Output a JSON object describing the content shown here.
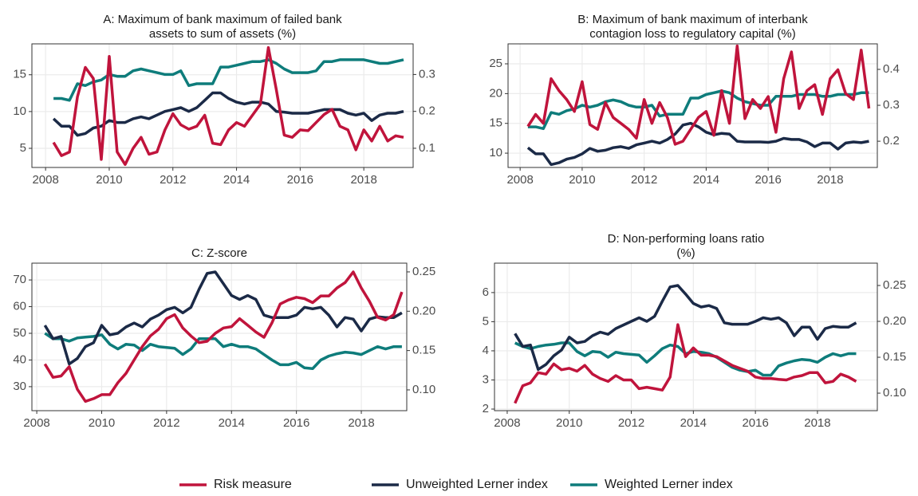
{
  "chart_data": [
    {
      "type": "line",
      "title": [
        "A: Maximum of bank maximum of failed bank",
        "assets to sum of assets (%)"
      ],
      "x": [
        2008.25,
        2008.5,
        2008.75,
        2009,
        2009.25,
        2009.5,
        2009.75,
        2010,
        2010.25,
        2010.5,
        2010.75,
        2011,
        2011.25,
        2011.5,
        2011.75,
        2012,
        2012.25,
        2012.5,
        2012.75,
        2013,
        2013.25,
        2013.5,
        2013.75,
        2014,
        2014.25,
        2014.5,
        2014.75,
        2015,
        2015.25,
        2015.5,
        2015.75,
        2016,
        2016.25,
        2016.5,
        2016.75,
        2017,
        2017.25,
        2017.5,
        2017.75,
        2018,
        2018.25,
        2018.5,
        2018.75,
        2019,
        2019.25
      ],
      "xlim": [
        2007.57,
        2019.55
      ],
      "xticks": [
        2008,
        2010,
        2012,
        2014,
        2016,
        2018
      ],
      "ylim": [
        2.4,
        19.2
      ],
      "yticks": [
        5,
        10,
        15
      ],
      "y2lim": [
        0.048,
        0.383
      ],
      "y2ticks": [
        0.1,
        0.2,
        0.3
      ],
      "grid": true,
      "series": [
        {
          "name": "Risk measure",
          "color": "#c0143c",
          "values": [
            5.8,
            4,
            4.5,
            12,
            16,
            14.5,
            3.5,
            17.5,
            4.5,
            2.8,
            5,
            6.5,
            4.2,
            4.5,
            7.5,
            9.7,
            8.2,
            7.6,
            8,
            9.5,
            5.7,
            5.5,
            7.5,
            8.5,
            8,
            9.5,
            11,
            18.7,
            13,
            6.8,
            6.5,
            7.5,
            7.4,
            8.5,
            9.6,
            10.3,
            8,
            7.5,
            4.8,
            7.5,
            6,
            8,
            6,
            6.7,
            6.5
          ]
        },
        {
          "name": "Unweighted Lerner index",
          "color": "#1b2a47",
          "axis": "y2",
          "values": [
            0.18,
            0.16,
            0.16,
            0.135,
            0.14,
            0.155,
            0.16,
            0.175,
            0.17,
            0.17,
            0.18,
            0.185,
            0.18,
            0.19,
            0.2,
            0.205,
            0.21,
            0.2,
            0.21,
            0.23,
            0.25,
            0.25,
            0.235,
            0.225,
            0.22,
            0.225,
            0.225,
            0.22,
            0.2,
            0.198,
            0.195,
            0.195,
            0.195,
            0.2,
            0.205,
            0.205,
            0.205,
            0.195,
            0.19,
            0.195,
            0.175,
            0.19,
            0.195,
            0.195,
            0.2
          ]
        },
        {
          "name": "Weighted Lerner index",
          "color": "#0e7c7b",
          "axis": "y2",
          "values": [
            0.235,
            0.235,
            0.23,
            0.275,
            0.27,
            0.28,
            0.285,
            0.3,
            0.295,
            0.295,
            0.31,
            0.315,
            0.31,
            0.305,
            0.3,
            0.3,
            0.31,
            0.27,
            0.275,
            0.275,
            0.275,
            0.32,
            0.32,
            0.325,
            0.33,
            0.335,
            0.335,
            0.34,
            0.33,
            0.315,
            0.305,
            0.305,
            0.305,
            0.31,
            0.335,
            0.335,
            0.34,
            0.34,
            0.34,
            0.34,
            0.335,
            0.33,
            0.33,
            0.335,
            0.34
          ]
        }
      ]
    },
    {
      "type": "line",
      "title": [
        "B: Maximum of bank maximum of interbank",
        "contagion loss to regulatory capital (%)"
      ],
      "x": [
        2008.25,
        2008.5,
        2008.75,
        2009,
        2009.25,
        2009.5,
        2009.75,
        2010,
        2010.25,
        2010.5,
        2010.75,
        2011,
        2011.25,
        2011.5,
        2011.75,
        2012,
        2012.25,
        2012.5,
        2012.75,
        2013,
        2013.25,
        2013.5,
        2013.75,
        2014,
        2014.25,
        2014.5,
        2014.75,
        2015,
        2015.25,
        2015.5,
        2015.75,
        2016,
        2016.25,
        2016.5,
        2016.75,
        2017,
        2017.25,
        2017.5,
        2017.75,
        2018,
        2018.25,
        2018.5,
        2018.75,
        2019,
        2019.25
      ],
      "xlim": [
        2007.61,
        2019.52
      ],
      "xticks": [
        2008,
        2010,
        2012,
        2014,
        2016,
        2018
      ],
      "ylim": [
        7.6,
        28.35
      ],
      "yticks": [
        10,
        15,
        20,
        25
      ],
      "y2lim": [
        0.127,
        0.471
      ],
      "y2ticks": [
        0.2,
        0.3,
        0.4
      ],
      "grid": true,
      "series": [
        {
          "name": "Risk measure",
          "color": "#c0143c",
          "values": [
            14.5,
            16.5,
            15,
            22.5,
            20.5,
            19,
            17,
            22,
            14.8,
            14,
            18.5,
            16,
            15,
            14,
            12.5,
            19,
            15,
            18.5,
            16,
            11.5,
            12,
            14,
            16,
            17,
            13,
            20.5,
            15,
            28,
            15.8,
            19,
            17.5,
            19.5,
            13.5,
            22.5,
            27,
            17.5,
            20.5,
            21.5,
            16.5,
            22.5,
            24,
            20,
            19,
            27.3,
            17.5
          ]
        },
        {
          "name": "Unweighted Lerner index",
          "color": "#1b2a47",
          "axis": "y2",
          "values": [
            0.182,
            0.165,
            0.165,
            0.135,
            0.14,
            0.15,
            0.155,
            0.165,
            0.18,
            0.172,
            0.175,
            0.182,
            0.185,
            0.18,
            0.19,
            0.195,
            0.2,
            0.195,
            0.205,
            0.22,
            0.245,
            0.25,
            0.24,
            0.225,
            0.218,
            0.222,
            0.22,
            0.2,
            0.198,
            0.198,
            0.198,
            0.197,
            0.2,
            0.208,
            0.205,
            0.205,
            0.198,
            0.185,
            0.195,
            0.195,
            0.178,
            0.195,
            0.198,
            0.196,
            0.2
          ]
        },
        {
          "name": "Weighted Lerner index",
          "color": "#0e7c7b",
          "axis": "y2",
          "values": [
            0.24,
            0.24,
            0.235,
            0.28,
            0.275,
            0.285,
            0.29,
            0.3,
            0.295,
            0.3,
            0.31,
            0.315,
            0.31,
            0.3,
            0.295,
            0.295,
            0.3,
            0.27,
            0.275,
            0.275,
            0.275,
            0.32,
            0.32,
            0.33,
            0.335,
            0.34,
            0.335,
            0.32,
            0.31,
            0.305,
            0.3,
            0.3,
            0.325,
            0.325,
            0.325,
            0.33,
            0.33,
            0.33,
            0.325,
            0.325,
            0.33,
            0.33,
            0.33,
            0.335,
            0.335
          ]
        }
      ]
    },
    {
      "type": "line",
      "title": [
        "C: Z-score"
      ],
      "x": [
        2008.25,
        2008.5,
        2008.75,
        2009,
        2009.25,
        2009.5,
        2009.75,
        2010,
        2010.25,
        2010.5,
        2010.75,
        2011,
        2011.25,
        2011.5,
        2011.75,
        2012,
        2012.25,
        2012.5,
        2012.75,
        2013,
        2013.25,
        2013.5,
        2013.75,
        2014,
        2014.25,
        2014.5,
        2014.75,
        2015,
        2015.25,
        2015.5,
        2015.75,
        2016,
        2016.25,
        2016.5,
        2016.75,
        2017,
        2017.25,
        2017.5,
        2017.75,
        2018,
        2018.25,
        2018.5,
        2018.75,
        2019,
        2019.25
      ],
      "xlim": [
        2007.85,
        2019.4
      ],
      "xticks": [
        2008,
        2010,
        2012,
        2014,
        2016,
        2018
      ],
      "ylim": [
        21,
        76.3
      ],
      "yticks": [
        30,
        40,
        50,
        60,
        70
      ],
      "y2lim": [
        0.0736,
        0.2611
      ],
      "y2ticks": [
        {
          "value": 0.1,
          "label": "0.10"
        },
        0.15,
        {
          "value": 0.2,
          "label": "0.20"
        },
        0.25
      ],
      "grid": true,
      "series": [
        {
          "name": "Risk measure",
          "color": "#c0143c",
          "values": [
            38.5,
            33.5,
            34,
            37.5,
            29,
            24.5,
            25.5,
            27,
            27,
            31.5,
            35,
            40,
            45,
            49,
            51.5,
            55.5,
            57,
            52,
            49,
            46.5,
            47,
            50,
            52,
            52.5,
            55.5,
            53,
            50.5,
            48.5,
            54,
            61,
            62.5,
            63.5,
            63,
            61.5,
            64,
            64,
            67,
            69,
            73,
            67,
            62,
            56,
            55,
            57,
            65.5
          ]
        },
        {
          "name": "Unweighted Lerner index",
          "color": "#1b2a47",
          "axis": "y2",
          "values": [
            0.182,
            0.165,
            0.168,
            0.133,
            0.14,
            0.155,
            0.16,
            0.182,
            0.17,
            0.172,
            0.18,
            0.185,
            0.18,
            0.19,
            0.195,
            0.202,
            0.205,
            0.198,
            0.205,
            0.228,
            0.248,
            0.25,
            0.235,
            0.22,
            0.215,
            0.22,
            0.215,
            0.195,
            0.192,
            0.192,
            0.192,
            0.195,
            0.205,
            0.203,
            0.205,
            0.195,
            0.18,
            0.192,
            0.19,
            0.175,
            0.19,
            0.193,
            0.192,
            0.192,
            0.198
          ]
        },
        {
          "name": "Weighted Lerner index",
          "color": "#0e7c7b",
          "axis": "y2",
          "values": [
            0.172,
            0.165,
            0.165,
            0.162,
            0.166,
            0.167,
            0.168,
            0.17,
            0.158,
            0.152,
            0.158,
            0.157,
            0.15,
            0.158,
            0.155,
            0.154,
            0.153,
            0.145,
            0.152,
            0.165,
            0.165,
            0.165,
            0.155,
            0.158,
            0.155,
            0.155,
            0.152,
            0.145,
            0.138,
            0.132,
            0.132,
            0.135,
            0.128,
            0.127,
            0.138,
            0.143,
            0.146,
            0.148,
            0.147,
            0.145,
            0.15,
            0.155,
            0.152,
            0.155,
            0.155
          ]
        }
      ]
    },
    {
      "type": "line",
      "title": [
        "D: Non-performing loans ratio",
        "(%)"
      ],
      "x": [
        2008.25,
        2008.5,
        2008.75,
        2009,
        2009.25,
        2009.5,
        2009.75,
        2010,
        2010.25,
        2010.5,
        2010.75,
        2011,
        2011.25,
        2011.5,
        2011.75,
        2012,
        2012.25,
        2012.5,
        2012.75,
        2013,
        2013.25,
        2013.5,
        2013.75,
        2014,
        2014.25,
        2014.5,
        2014.75,
        2015,
        2015.25,
        2015.5,
        2015.75,
        2016,
        2016.25,
        2016.5,
        2016.75,
        2017,
        2017.25,
        2017.5,
        2017.75,
        2018,
        2018.25,
        2018.5,
        2018.75,
        2019,
        2019.25
      ],
      "xlim": [
        2007.59,
        2019.93
      ],
      "xticks": [
        2008,
        2010,
        2012,
        2014,
        2016,
        2018
      ],
      "ylim": [
        1.945,
        7.01
      ],
      "yticks": [
        2,
        3,
        4,
        5,
        6
      ],
      "y2lim": [
        0.0756,
        0.2811
      ],
      "y2ticks": [
        {
          "value": 0.1,
          "label": "0.10"
        },
        0.15,
        {
          "value": 0.2,
          "label": "0.20"
        },
        0.25
      ],
      "grid": true,
      "series": [
        {
          "name": "Risk measure",
          "color": "#c0143c",
          "values": [
            2.2,
            2.8,
            2.9,
            3.25,
            3.2,
            3.55,
            3.35,
            3.4,
            3.3,
            3.5,
            3.2,
            3.05,
            2.95,
            3.15,
            3,
            3,
            2.7,
            2.75,
            2.7,
            2.65,
            3.1,
            4.9,
            3.8,
            4.1,
            3.85,
            3.85,
            3.8,
            3.65,
            3.5,
            3.4,
            3.3,
            3.1,
            3.05,
            3.05,
            3.02,
            3,
            3.1,
            3.15,
            3.25,
            3.25,
            2.9,
            2.95,
            3.2,
            3.1,
            2.95
          ]
        },
        {
          "name": "Unweighted Lerner index",
          "color": "#1b2a47",
          "axis": "y2",
          "values": [
            0.183,
            0.165,
            0.167,
            0.133,
            0.14,
            0.152,
            0.16,
            0.178,
            0.17,
            0.172,
            0.18,
            0.185,
            0.182,
            0.19,
            0.195,
            0.2,
            0.205,
            0.2,
            0.207,
            0.228,
            0.248,
            0.25,
            0.238,
            0.225,
            0.22,
            0.222,
            0.218,
            0.198,
            0.196,
            0.196,
            0.196,
            0.2,
            0.205,
            0.203,
            0.205,
            0.198,
            0.18,
            0.192,
            0.192,
            0.175,
            0.19,
            0.193,
            0.192,
            0.192,
            0.198
          ]
        },
        {
          "name": "Weighted Lerner index",
          "color": "#0e7c7b",
          "axis": "y2",
          "values": [
            0.17,
            0.165,
            0.162,
            0.165,
            0.167,
            0.168,
            0.17,
            0.17,
            0.158,
            0.152,
            0.158,
            0.157,
            0.15,
            0.157,
            0.155,
            0.154,
            0.153,
            0.143,
            0.152,
            0.162,
            0.167,
            0.165,
            0.155,
            0.158,
            0.157,
            0.155,
            0.15,
            0.143,
            0.136,
            0.132,
            0.13,
            0.132,
            0.125,
            0.125,
            0.138,
            0.142,
            0.145,
            0.147,
            0.146,
            0.143,
            0.15,
            0.155,
            0.152,
            0.155,
            0.155
          ]
        }
      ]
    }
  ]
}
